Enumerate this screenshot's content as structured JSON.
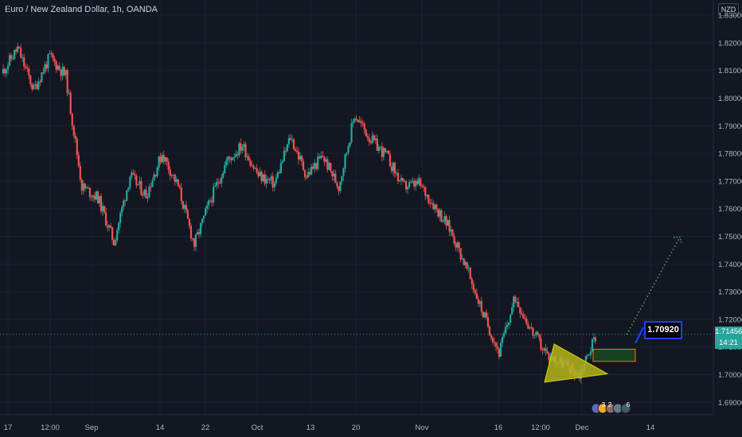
{
  "window": {
    "title": "Euro / New Zealand Dollar, 1h, OANDA"
  },
  "currency_badge": "NZD",
  "last_price": {
    "value": "1.71456",
    "countdown": "14:21",
    "color": "#26a69a"
  },
  "callout": {
    "text": "1.70920"
  },
  "event_badges": [
    "3",
    "2",
    "6"
  ],
  "colors": {
    "up": "#26a69a",
    "down": "#ef5350",
    "triangle": "#b5b51c",
    "target_line": "#4caf50",
    "callout_border": "#1e40ff",
    "zone_border": "#f57c00",
    "zone_fill": "#1b5e20"
  },
  "chart_data": {
    "type": "candlestick",
    "title": "Euro / New Zealand Dollar, 1h, OANDA",
    "y_axis": {
      "side": "right",
      "range": [
        1.6855,
        1.8355
      ],
      "ticks": [
        "1.83000",
        "1.82000",
        "1.81000",
        "1.80000",
        "1.79000",
        "1.78000",
        "1.77000",
        "1.76000",
        "1.75000",
        "1.74000",
        "1.73000",
        "1.72000",
        "1.71000",
        "1.70000",
        "1.69000"
      ]
    },
    "x_axis": {
      "ticks": [
        "17",
        "12:00",
        "Sep",
        "14",
        "22",
        "Oct",
        "13",
        "20",
        "Nov",
        "16",
        "12:00",
        "Dec",
        "14"
      ]
    },
    "series": [
      {
        "x": [
          "Aug 17",
          "Aug 19",
          "Aug 21",
          "Aug 23",
          "Aug 28",
          "Sep 2",
          "Sep 6",
          "Sep 9",
          "Sep 12",
          "Sep 15",
          "Sep 18",
          "Sep 21",
          "Sep 24",
          "Sep 26",
          "Sep 29",
          "Oct 1",
          "Oct 4",
          "Oct 6",
          "Oct 9",
          "Oct 12",
          "Oct 15",
          "Oct 17",
          "Oct 20",
          "Oct 22",
          "Oct 25",
          "Oct 28",
          "Nov 1",
          "Nov 4",
          "Nov 7",
          "Nov 10",
          "Nov 12",
          "Nov 15",
          "Nov 17",
          "Nov 20",
          "Nov 23",
          "Nov 26",
          "Nov 28",
          "Dec 1"
        ],
        "close": [
          1.809,
          1.818,
          1.803,
          1.815,
          1.808,
          1.768,
          1.764,
          1.748,
          1.772,
          1.765,
          1.78,
          1.768,
          1.747,
          1.763,
          1.777,
          1.783,
          1.772,
          1.769,
          1.786,
          1.772,
          1.779,
          1.768,
          1.794,
          1.785,
          1.779,
          1.768,
          1.769,
          1.761,
          1.752,
          1.738,
          1.722,
          1.708,
          1.728,
          1.716,
          1.707,
          1.704,
          1.7,
          1.714
        ]
      }
    ],
    "annotations": {
      "last_price": 1.71456,
      "callout_price": 1.7092,
      "triangle_pattern": {
        "from": "Nov 22",
        "to": "Nov 30",
        "apex_price": 1.7003
      },
      "projected_target": 1.7497
    }
  }
}
